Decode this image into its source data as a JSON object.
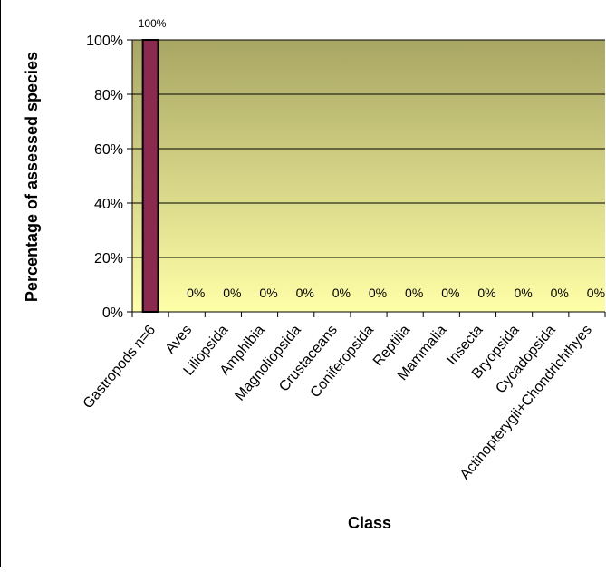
{
  "chart_data": {
    "type": "bar",
    "title": "",
    "xlabel": "Class",
    "ylabel": "Percentage of assessed species",
    "ylim": [
      0,
      100
    ],
    "yticks": [
      "0%",
      "20%",
      "40%",
      "60%",
      "80%",
      "100%"
    ],
    "categories": [
      "Gastropods n=6",
      "Aves",
      "Liliopsida",
      "Amphibia",
      "Magnoliopsida",
      "Crustaceans",
      "Coniferopsida",
      "Reptilia",
      "Mammalia",
      "Insecta",
      "Bryopsida",
      "Cycadopsida",
      "Actinopterygii+Chondrichthyes"
    ],
    "values": [
      100,
      0,
      0,
      0,
      0,
      0,
      0,
      0,
      0,
      0,
      0,
      0,
      0
    ],
    "data_labels": [
      "100%",
      "0%",
      "0%",
      "0%",
      "0%",
      "0%",
      "0%",
      "0%",
      "0%",
      "0%",
      "0%",
      "0%",
      "0%"
    ],
    "grid": true,
    "legend": "none",
    "colors": {
      "bar_fill": "#8b2a4e",
      "bar_stroke": "#000000",
      "plot_top": "#a8a663",
      "plot_bottom": "#ffffa8",
      "gridline": "#000000"
    }
  }
}
